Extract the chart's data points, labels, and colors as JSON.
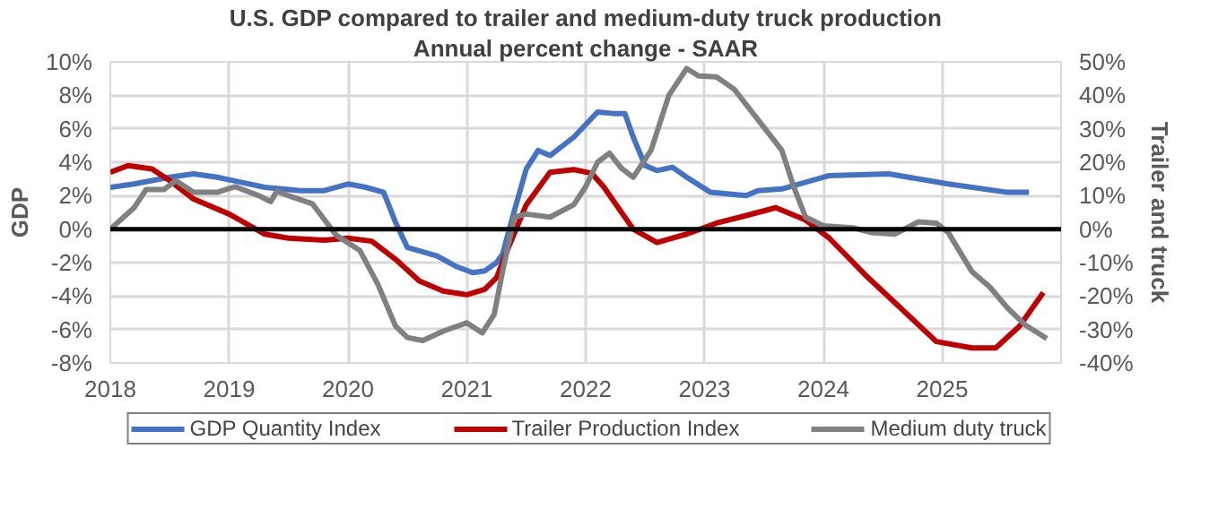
{
  "chart_data": {
    "type": "line",
    "title": "U.S. GDP compared to trailer and medium-duty truck production",
    "subtitle": "Annual percent change - SAAR",
    "ylabel": "GDP",
    "y2label": "Trailer and truck",
    "xlim": [
      2018,
      2026
    ],
    "xticks": [
      2018,
      2019,
      2020,
      2021,
      2022,
      2023,
      2024,
      2025
    ],
    "ylim": [
      -8,
      10
    ],
    "yticks": [
      {
        "value": -8,
        "label": "-8%"
      },
      {
        "value": -6,
        "label": "-6%"
      },
      {
        "value": -4,
        "label": "-4%"
      },
      {
        "value": -2,
        "label": "-2%"
      },
      {
        "value": 0,
        "label": "0%"
      },
      {
        "value": 2,
        "label": "2%"
      },
      {
        "value": 4,
        "label": "4%"
      },
      {
        "value": 6,
        "label": "6%"
      },
      {
        "value": 8,
        "label": "8%"
      },
      {
        "value": 10,
        "label": "10%"
      }
    ],
    "y2lim": [
      -40,
      50
    ],
    "y2ticks": [
      {
        "value": -40,
        "label": "-40%"
      },
      {
        "value": -30,
        "label": "-30%"
      },
      {
        "value": -20,
        "label": "-20%"
      },
      {
        "value": -10,
        "label": "-10%"
      },
      {
        "value": 0,
        "label": "0%"
      },
      {
        "value": 10,
        "label": "10%"
      },
      {
        "value": 20,
        "label": "20%"
      },
      {
        "value": 30,
        "label": "30%"
      },
      {
        "value": 40,
        "label": "40%"
      },
      {
        "value": 50,
        "label": "50%"
      }
    ],
    "grid": true,
    "legend": "bottom",
    "marker": "none",
    "line_style": "solid",
    "ref_lines": [
      {
        "axis": "y",
        "value": 0,
        "color": "#000000"
      }
    ],
    "series": [
      {
        "name": "GDP Quantity Index",
        "color": "#4472c4",
        "x": [
          2018.0,
          2018.2,
          2018.5,
          2018.7,
          2018.9,
          2019.1,
          2019.3,
          2019.6,
          2019.8,
          2020.0,
          2020.15,
          2020.3,
          2020.4,
          2020.5,
          2020.6,
          2020.75,
          2020.9,
          2021.05,
          2021.15,
          2021.25,
          2021.3,
          2021.4,
          2021.5,
          2021.6,
          2021.7,
          2021.9,
          2022.1,
          2022.25,
          2022.33,
          2022.4,
          2022.5,
          2022.6,
          2022.73,
          2022.85,
          2023.05,
          2023.35,
          2023.45,
          2023.65,
          2024.05,
          2024.55,
          2025.05,
          2025.55,
          2025.73
        ],
        "values": [
          2.5,
          2.7,
          3.1,
          3.3,
          3.1,
          2.8,
          2.5,
          2.3,
          2.3,
          2.7,
          2.5,
          2.2,
          0.4,
          -1.1,
          -1.3,
          -1.6,
          -2.2,
          -2.6,
          -2.5,
          -2.0,
          -1.5,
          1.1,
          3.6,
          4.7,
          4.4,
          5.5,
          7.0,
          6.9,
          6.9,
          5.5,
          3.8,
          3.5,
          3.7,
          3.1,
          2.2,
          2.0,
          2.3,
          2.4,
          3.2,
          3.3,
          2.7,
          2.2,
          2.2
        ]
      },
      {
        "name": "Trailer Production Index",
        "color": "#c00000",
        "axis": "y2",
        "x": [
          2018.0,
          2018.15,
          2018.35,
          2018.5,
          2018.7,
          2019.0,
          2019.3,
          2019.5,
          2019.8,
          2020.0,
          2020.2,
          2020.4,
          2020.6,
          2020.8,
          2021.0,
          2021.15,
          2021.25,
          2021.35,
          2021.5,
          2021.7,
          2021.9,
          2022.05,
          2022.15,
          2022.4,
          2022.6,
          2022.85,
          2023.1,
          2023.3,
          2023.6,
          2023.85,
          2024.05,
          2024.35,
          2024.65,
          2024.95,
          2025.25,
          2025.45,
          2025.65,
          2025.85
        ],
        "values": [
          17,
          19,
          18,
          14.5,
          9,
          4.5,
          -1.5,
          -2.7,
          -3.3,
          -2.7,
          -3.6,
          -9,
          -15.5,
          -18.5,
          -19.6,
          -18,
          -14.5,
          -5.5,
          7.3,
          17,
          17.8,
          16.7,
          12.7,
          0,
          -4,
          -1.5,
          1.8,
          3.6,
          6.4,
          2.7,
          -2.7,
          -13.6,
          -23.6,
          -33.6,
          -35.5,
          -35.5,
          -29,
          -19
        ]
      },
      {
        "name": "Medium duty truck",
        "color": "#808080",
        "axis": "y2",
        "x": [
          2018.0,
          2018.2,
          2018.3,
          2018.45,
          2018.55,
          2018.7,
          2018.9,
          2019.05,
          2019.25,
          2019.35,
          2019.4,
          2019.5,
          2019.7,
          2019.9,
          2020.1,
          2020.25,
          2020.4,
          2020.5,
          2020.63,
          2020.8,
          2021.0,
          2021.13,
          2021.23,
          2021.3,
          2021.4,
          2021.5,
          2021.7,
          2021.9,
          2022.0,
          2022.1,
          2022.2,
          2022.3,
          2022.4,
          2022.55,
          2022.7,
          2022.85,
          2022.95,
          2023.1,
          2023.25,
          2023.45,
          2023.65,
          2023.75,
          2023.85,
          2024.0,
          2024.25,
          2024.4,
          2024.6,
          2024.8,
          2024.95,
          2025.05,
          2025.25,
          2025.4,
          2025.55,
          2025.7,
          2025.88
        ],
        "values": [
          0,
          6.4,
          11.8,
          11.8,
          14.5,
          11,
          11,
          12.7,
          10,
          8.2,
          11.3,
          10,
          7.6,
          -1.8,
          -6.4,
          -16.4,
          -29,
          -32.4,
          -33.3,
          -30.5,
          -28,
          -31,
          -25.5,
          -12.7,
          3.6,
          4.5,
          3.6,
          7.3,
          12.7,
          20,
          22.7,
          18.2,
          15.5,
          23.6,
          40,
          48,
          45.8,
          45.5,
          41.8,
          32.7,
          23.6,
          12.7,
          3.6,
          1,
          0.4,
          -1,
          -1.5,
          2.2,
          1.8,
          -1,
          -12.7,
          -17.3,
          -23.6,
          -28.7,
          -32.7
        ]
      }
    ]
  }
}
